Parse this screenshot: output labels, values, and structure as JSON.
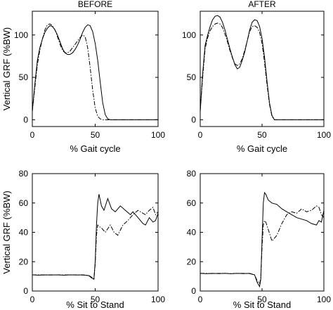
{
  "chart_data": [
    {
      "type": "line",
      "title": "BEFORE",
      "xlabel": "% Gait cycle",
      "ylabel": "Vertical GRF (%BW)",
      "xlim": [
        0,
        100
      ],
      "ylim": [
        -8,
        128
      ],
      "xticks": [
        0,
        50,
        100
      ],
      "yticks": [
        0,
        50,
        100
      ],
      "series": [
        {
          "style": "solid",
          "x": [
            0,
            2,
            4,
            6,
            8,
            10,
            12,
            14,
            16,
            18,
            20,
            22,
            24,
            26,
            28,
            30,
            32,
            34,
            36,
            38,
            40,
            42,
            44,
            46,
            48,
            50,
            52,
            54,
            56,
            58,
            60,
            62,
            64,
            70,
            80,
            90,
            100
          ],
          "y": [
            10,
            42,
            70,
            85,
            95,
            103,
            108,
            111,
            110,
            106,
            100,
            92,
            84,
            79,
            77,
            77,
            79,
            83,
            88,
            95,
            103,
            109,
            112,
            111,
            104,
            90,
            70,
            44,
            20,
            6,
            1,
            0,
            0,
            0,
            0,
            0,
            0
          ]
        },
        {
          "style": "dash-dot",
          "x": [
            0,
            2,
            4,
            6,
            8,
            10,
            12,
            14,
            16,
            18,
            20,
            22,
            24,
            26,
            28,
            30,
            32,
            34,
            36,
            38,
            40,
            42,
            44,
            46,
            48,
            50,
            52,
            54,
            56,
            58,
            60,
            62,
            70,
            80,
            90,
            100
          ],
          "y": [
            10,
            38,
            65,
            82,
            95,
            106,
            112,
            113,
            111,
            106,
            98,
            89,
            82,
            79,
            79,
            81,
            85,
            89,
            93,
            97,
            100,
            98,
            85,
            62,
            35,
            14,
            4,
            1,
            0,
            0,
            0,
            0,
            0,
            0,
            0,
            0
          ]
        }
      ]
    },
    {
      "type": "line",
      "title": "AFTER",
      "xlabel": "% Gait cycle",
      "ylabel": "",
      "xlim": [
        0,
        100
      ],
      "ylim": [
        -8,
        128
      ],
      "xticks": [
        0,
        50,
        100
      ],
      "yticks": [
        0,
        50,
        100
      ],
      "series": [
        {
          "style": "solid",
          "x": [
            0,
            2,
            4,
            6,
            8,
            10,
            12,
            14,
            16,
            18,
            20,
            22,
            24,
            26,
            28,
            30,
            32,
            34,
            36,
            38,
            40,
            42,
            44,
            46,
            48,
            50,
            52,
            54,
            56,
            58,
            60,
            62,
            70,
            80,
            90,
            100
          ],
          "y": [
            10,
            55,
            88,
            100,
            110,
            118,
            122,
            123,
            121,
            115,
            106,
            95,
            84,
            74,
            65,
            60,
            62,
            70,
            80,
            93,
            106,
            115,
            118,
            117,
            110,
            96,
            74,
            46,
            20,
            5,
            0,
            0,
            0,
            0,
            0,
            0
          ]
        },
        {
          "style": "dash-dot",
          "x": [
            0,
            2,
            4,
            6,
            8,
            10,
            12,
            14,
            16,
            18,
            20,
            22,
            24,
            26,
            28,
            30,
            32,
            34,
            36,
            38,
            40,
            42,
            44,
            46,
            48,
            50,
            52,
            54,
            56,
            58,
            60,
            62,
            70,
            80,
            90,
            100
          ],
          "y": [
            10,
            50,
            84,
            97,
            105,
            110,
            113,
            114,
            113,
            109,
            101,
            92,
            82,
            73,
            66,
            64,
            66,
            72,
            82,
            93,
            104,
            110,
            111,
            109,
            103,
            90,
            68,
            42,
            18,
            4,
            0,
            0,
            0,
            0,
            0,
            0
          ]
        }
      ]
    },
    {
      "type": "line",
      "title": "",
      "xlabel": "% Sit to Stand",
      "ylabel": "Vertical GRF (%BW)",
      "xlim": [
        0,
        100
      ],
      "ylim": [
        0,
        80
      ],
      "xticks": [
        0,
        50,
        100
      ],
      "yticks": [
        0,
        20,
        40,
        60,
        80
      ],
      "series": [
        {
          "style": "solid",
          "x": [
            0,
            5,
            10,
            15,
            20,
            25,
            30,
            35,
            40,
            45,
            47,
            49,
            50,
            51,
            52,
            53,
            55,
            57,
            60,
            63,
            66,
            70,
            74,
            78,
            80,
            84,
            88,
            90,
            93,
            96,
            98,
            100
          ],
          "y": [
            11,
            10.8,
            11,
            10.9,
            11,
            10.8,
            11,
            10.9,
            11,
            10.5,
            9,
            8,
            20,
            45,
            60,
            66,
            58,
            55,
            63,
            56,
            54,
            58,
            55,
            52,
            54,
            50,
            46,
            45,
            50,
            47,
            48,
            53
          ]
        },
        {
          "style": "dash-dot",
          "x": [
            0,
            5,
            10,
            15,
            20,
            25,
            30,
            35,
            40,
            45,
            47,
            49,
            50,
            51,
            52,
            53,
            55,
            58,
            62,
            65,
            68,
            72,
            76,
            80,
            84,
            88,
            90,
            93,
            96,
            98,
            100
          ],
          "y": [
            11,
            11,
            10.9,
            11,
            11,
            10.9,
            11,
            11,
            10.9,
            10.6,
            9.5,
            8.5,
            18,
            38,
            45,
            44,
            43,
            40,
            45,
            40,
            38,
            45,
            48,
            52,
            55,
            53,
            52,
            55,
            57,
            52,
            54
          ]
        }
      ]
    },
    {
      "type": "line",
      "title": "",
      "xlabel": "% Sit to Stand",
      "ylabel": "",
      "xlim": [
        0,
        100
      ],
      "ylim": [
        0,
        80
      ],
      "xticks": [
        0,
        50,
        100
      ],
      "yticks": [
        0,
        20,
        40,
        60,
        80
      ],
      "series": [
        {
          "style": "solid",
          "x": [
            0,
            5,
            10,
            15,
            20,
            25,
            30,
            35,
            40,
            44,
            46,
            48,
            49,
            50,
            51,
            52,
            53,
            55,
            58,
            62,
            66,
            70,
            74,
            78,
            82,
            86,
            90,
            94,
            96,
            98,
            100
          ],
          "y": [
            12,
            11.8,
            12,
            11.9,
            12,
            11.8,
            12,
            11.9,
            12,
            11,
            6,
            3,
            8,
            35,
            60,
            67,
            66,
            62,
            60,
            59,
            56,
            54,
            52,
            50,
            49,
            48,
            46,
            45,
            48,
            47,
            55
          ]
        },
        {
          "style": "dash-dot",
          "x": [
            0,
            5,
            10,
            15,
            20,
            25,
            30,
            35,
            40,
            44,
            46,
            48,
            49,
            50,
            51,
            52,
            53,
            55,
            58,
            62,
            66,
            70,
            74,
            78,
            82,
            86,
            90,
            94,
            96,
            98,
            100
          ],
          "y": [
            12,
            12,
            11.9,
            12,
            12,
            11.9,
            12,
            12,
            11.9,
            11,
            7,
            5,
            9,
            30,
            45,
            48,
            47,
            42,
            34,
            38,
            46,
            52,
            54,
            53,
            56,
            54,
            55,
            58,
            57,
            52,
            50
          ]
        }
      ]
    }
  ]
}
